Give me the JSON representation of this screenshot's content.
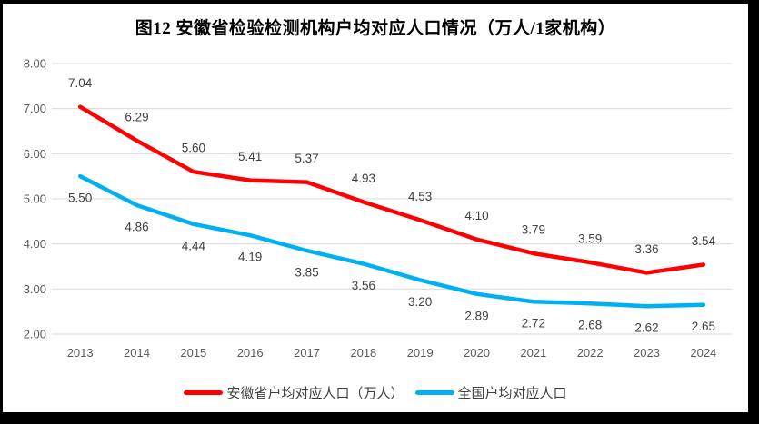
{
  "title": "图12 安徽省检验检测机构户均对应人口情况（万人/1家机构）",
  "colors": {
    "series_anhui": "#FF0000",
    "series_national": "#00B0F0",
    "gridline": "#D9D9D9",
    "axis_text": "#595959",
    "data_label_text": "#404040",
    "title_text": "#000000",
    "frame_border": "#000000",
    "background": "#FFFFFF"
  },
  "chart_data": {
    "type": "line",
    "title": "图12 安徽省检验检测机构户均对应人口情况（万人/1家机构）",
    "categories": [
      "2013",
      "2014",
      "2015",
      "2016",
      "2017",
      "2018",
      "2019",
      "2020",
      "2021",
      "2022",
      "2023",
      "2024"
    ],
    "series": [
      {
        "name": "安徽省户均对应人口（万人）",
        "color": "#FF0000",
        "values": [
          7.04,
          6.29,
          5.6,
          5.41,
          5.37,
          4.93,
          4.53,
          4.1,
          3.79,
          3.59,
          3.36,
          3.54
        ],
        "label_position": "above"
      },
      {
        "name": "全国户均对应人口",
        "color": "#00B0F0",
        "values": [
          5.5,
          4.86,
          4.44,
          4.19,
          3.85,
          3.56,
          3.2,
          2.89,
          2.72,
          2.68,
          2.62,
          2.65
        ],
        "label_position": "below"
      }
    ],
    "xlabel": "",
    "ylabel": "",
    "y_axis": {
      "min": 2.0,
      "max": 8.0,
      "step": 1.0,
      "tick_labels": [
        "8.00",
        "7.00",
        "6.00",
        "5.00",
        "4.00",
        "3.00",
        "2.00"
      ]
    },
    "grid": true,
    "gridlines": "horizontal",
    "data_labels_decimals": 2,
    "legend_position": "bottom"
  },
  "legend": {
    "items": [
      {
        "label": "安徽省户均对应人口（万人）",
        "color": "#FF0000"
      },
      {
        "label": "全国户均对应人口",
        "color": "#00B0F0"
      }
    ]
  }
}
